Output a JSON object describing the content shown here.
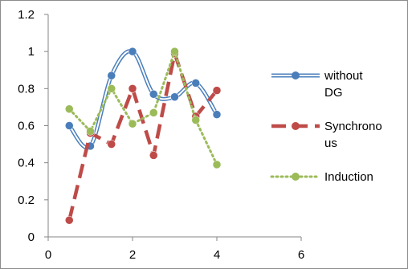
{
  "chart_data": {
    "type": "line",
    "title": "",
    "xlabel": "",
    "ylabel": "",
    "xlim": [
      0,
      6
    ],
    "ylim": [
      0,
      1.2
    ],
    "x_ticks": [
      0,
      2,
      4,
      6
    ],
    "y_ticks": [
      0,
      0.2,
      0.4,
      0.6,
      0.8,
      1,
      1.2
    ],
    "x_tick_labels": [
      "0",
      "2",
      "4",
      "6"
    ],
    "y_tick_labels": [
      "0",
      "0.2",
      "0.4",
      "0.6",
      "0.8",
      "1",
      "1.2"
    ],
    "grid": false,
    "legend": "right",
    "series": [
      {
        "name": "without DG",
        "legend_lines": [
          "without",
          "DG"
        ],
        "style": "smooth-double",
        "color": "#4a7ebb",
        "x": [
          0.5,
          1,
          1.5,
          2,
          2.5,
          3,
          3.5,
          4
        ],
        "y": [
          0.6,
          0.49,
          0.87,
          1.0,
          0.77,
          0.755,
          0.83,
          0.66
        ]
      },
      {
        "name": "Synchronous",
        "legend_lines": [
          "Synchrono",
          "us"
        ],
        "style": "dashed",
        "color": "#be4b48",
        "x": [
          0.5,
          1,
          1.5,
          2,
          2.5,
          3,
          3.5,
          4
        ],
        "y": [
          0.09,
          0.56,
          0.5,
          0.8,
          0.44,
          0.99,
          0.65,
          0.79
        ]
      },
      {
        "name": "Induction",
        "legend_lines": [
          "Induction"
        ],
        "style": "dotted",
        "color": "#9bbb59",
        "x": [
          0.5,
          1,
          1.5,
          2,
          2.5,
          3,
          3.5,
          4
        ],
        "y": [
          0.69,
          0.57,
          0.8,
          0.61,
          0.67,
          1.0,
          0.63,
          0.39
        ]
      }
    ]
  }
}
